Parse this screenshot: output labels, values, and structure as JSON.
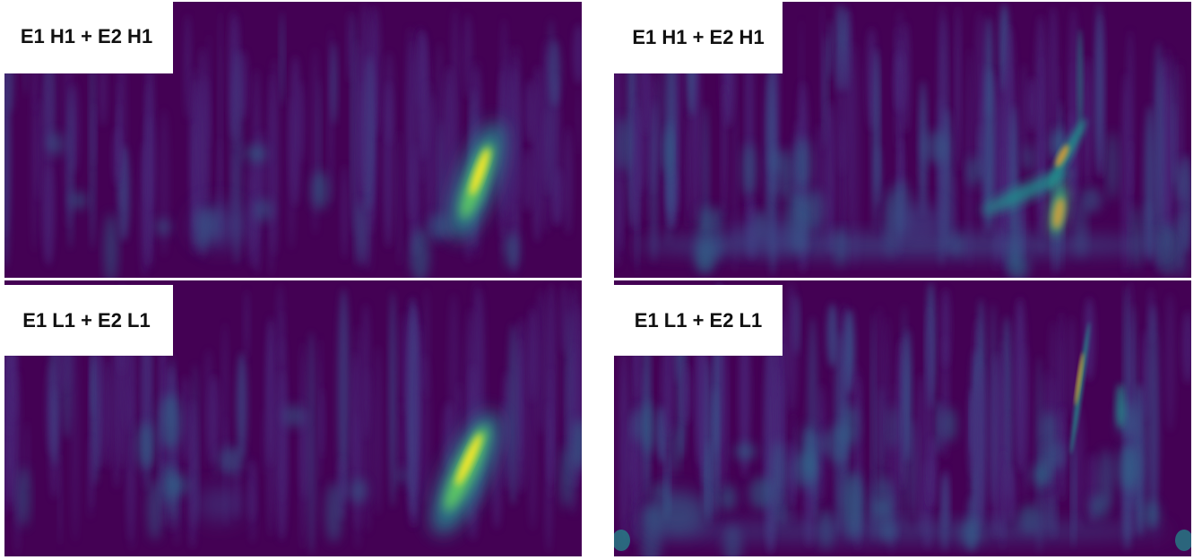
{
  "panels": [
    {
      "label": "E1 H1 + E2 H1"
    },
    {
      "label": "E1 H1 + E2 H1"
    },
    {
      "label": "E1 L1 + E2 L1"
    },
    {
      "label": "E1 L1 + E2 L1"
    }
  ]
}
